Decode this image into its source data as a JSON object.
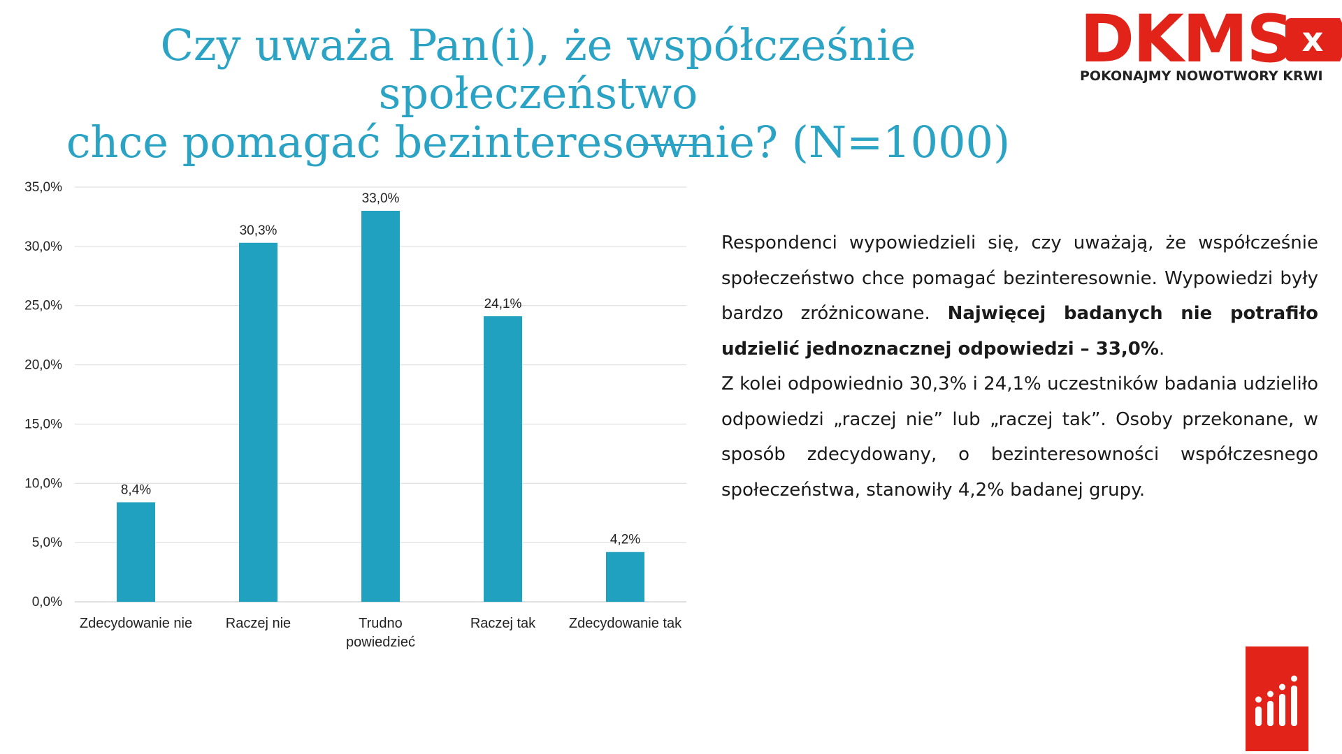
{
  "title": {
    "line1": "Czy uważa Pan(i), że współcześnie społeczeństwo",
    "line2": "chce pomagać bezinteresownie? (N=1000)"
  },
  "logo": {
    "word": "DKMS",
    "x_mark": "x",
    "tagline": "POKONAJMY NOWOTWORY KRWI"
  },
  "chart_data": {
    "type": "bar",
    "categories": [
      "Zdecydowanie nie",
      "Raczej nie",
      "Trudno powiedzieć",
      "Raczej tak",
      "Zdecydowanie tak"
    ],
    "values": [
      8.4,
      30.3,
      33.0,
      24.1,
      4.2
    ],
    "data_labels": [
      "8,4%",
      "30,3%",
      "33,0%",
      "24,1%",
      "4,2%"
    ],
    "yticks": [
      "0,0%",
      "5,0%",
      "10,0%",
      "15,0%",
      "20,0%",
      "25,0%",
      "30,0%",
      "35,0%"
    ],
    "ylim": [
      0,
      35
    ],
    "grid": true,
    "bar_color": "#21a1c0",
    "grid_color": "#d9d9d9"
  },
  "description": {
    "p1_start": "Respondenci wypowiedzieli się, czy uważają, że współcześnie społeczeństwo chce pomagać bezinteresownie. Wypowiedzi były bardzo zróżnicowane. ",
    "p1_bold": "Najwięcej badanych nie potrafiło udzielić jednoznacznej odpowiedzi – 33,0%",
    "p1_end": ".",
    "p2": "Z kolei odpowiednio 30,3% i 24,1% uczestników badania udzieliło odpowiedzi „raczej nie” lub „raczej tak”. Osoby przekonane, w sposób zdecydowany, o bezinteresowności współczesnego społeczeństwa, stanowiły 4,2% badanej grupy."
  },
  "colors": {
    "accent": "#2aa3c4",
    "brand_red": "#e2231a"
  }
}
